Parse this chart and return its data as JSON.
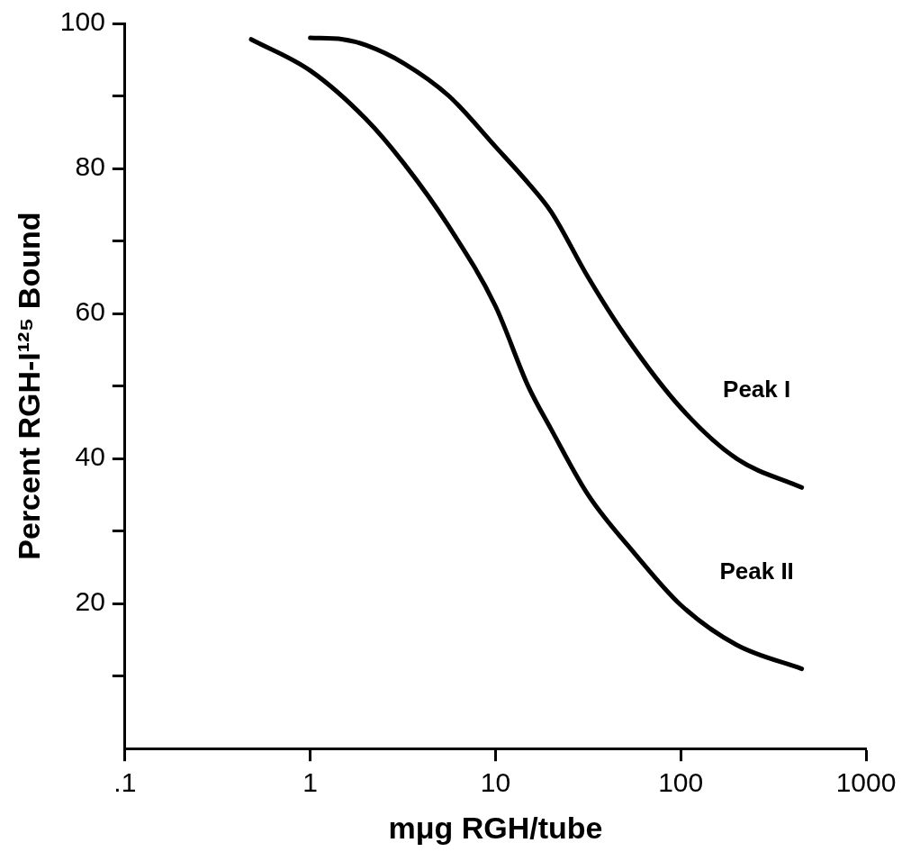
{
  "chart_data": {
    "type": "line",
    "xlabel": "mμg RGH/tube",
    "ylabel": "Percent RGH-I¹²⁵ Bound",
    "log": "x",
    "grid": false,
    "legend": false,
    "marker": "none",
    "line_style": "solid",
    "xlim": [
      0.1,
      1000
    ],
    "xticks": [
      {
        "value": 0.1,
        "label": ".1"
      },
      1,
      10,
      100,
      1000
    ],
    "ylim": [
      0,
      100
    ],
    "yticks": [
      {
        "value": 10,
        "label": null
      },
      20,
      {
        "value": 30,
        "label": null
      },
      40,
      {
        "value": 50,
        "label": null
      },
      60,
      {
        "value": 70,
        "label": null
      },
      80,
      {
        "value": 90,
        "label": null
      },
      100
    ],
    "series": [
      {
        "name": "Peak I",
        "color": "#000000",
        "x": [
          1,
          1.5,
          2,
          3.2,
          5.6,
          10,
          15,
          20,
          31.6,
          50,
          100,
          200,
          450
        ],
        "values": [
          98,
          97.8,
          97,
          94.5,
          90,
          83,
          78,
          74,
          65,
          57,
          47,
          40,
          36
        ]
      },
      {
        "name": "Peak II",
        "color": "#000000",
        "x": [
          0.48,
          1,
          2,
          3.2,
          5.6,
          10,
          15,
          20,
          31.6,
          56,
          100,
          200,
          450
        ],
        "values": [
          97.8,
          93.5,
          86.8,
          80.7,
          72,
          61,
          50,
          44,
          35,
          27,
          19.8,
          14.3,
          11
        ]
      }
    ]
  }
}
